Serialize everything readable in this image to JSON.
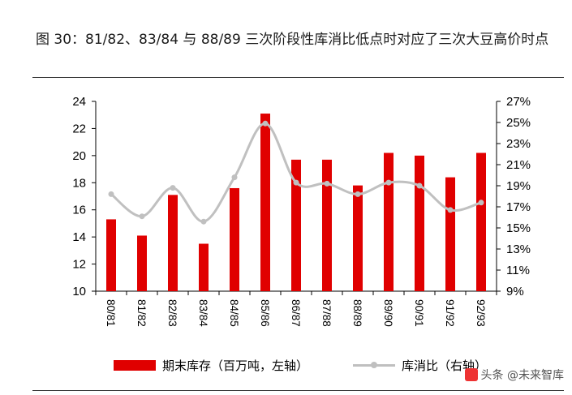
{
  "title": "图 30：81/82、83/84 与 88/89 三次阶段性库消比低点时对应了三次大豆高价时点",
  "watermark": "头条 @未来智库",
  "colors": {
    "bar": "#e00000",
    "line": "#c0c0c0"
  },
  "chart_data": {
    "type": "bar",
    "title": "",
    "categories": [
      "80/81",
      "81/82",
      "82/83",
      "83/84",
      "84/85",
      "85/86",
      "86/87",
      "87/88",
      "88/89",
      "89/90",
      "90/91",
      "91/92",
      "92/93"
    ],
    "series": [
      {
        "name": "期末库存（百万吨，左轴）",
        "type": "bar",
        "axis": "left",
        "values": [
          15.3,
          14.1,
          17.1,
          13.5,
          17.6,
          23.1,
          19.7,
          19.7,
          17.8,
          20.2,
          20.0,
          18.4,
          20.2
        ]
      },
      {
        "name": "库消比（右轴）",
        "type": "line",
        "axis": "right",
        "values": [
          18.2,
          16.1,
          18.8,
          15.6,
          19.8,
          24.9,
          19.3,
          19.2,
          18.2,
          19.3,
          19.0,
          16.7,
          17.4
        ]
      }
    ],
    "y_left": {
      "min": 10,
      "max": 24,
      "ticks": [
        "10",
        "12",
        "14",
        "16",
        "18",
        "20",
        "22",
        "24"
      ]
    },
    "y_right": {
      "min": 9,
      "max": 27,
      "ticks": [
        "9%",
        "11%",
        "13%",
        "15%",
        "17%",
        "19%",
        "21%",
        "23%",
        "25%",
        "27%"
      ]
    },
    "grid": false,
    "legend": "bottom"
  }
}
